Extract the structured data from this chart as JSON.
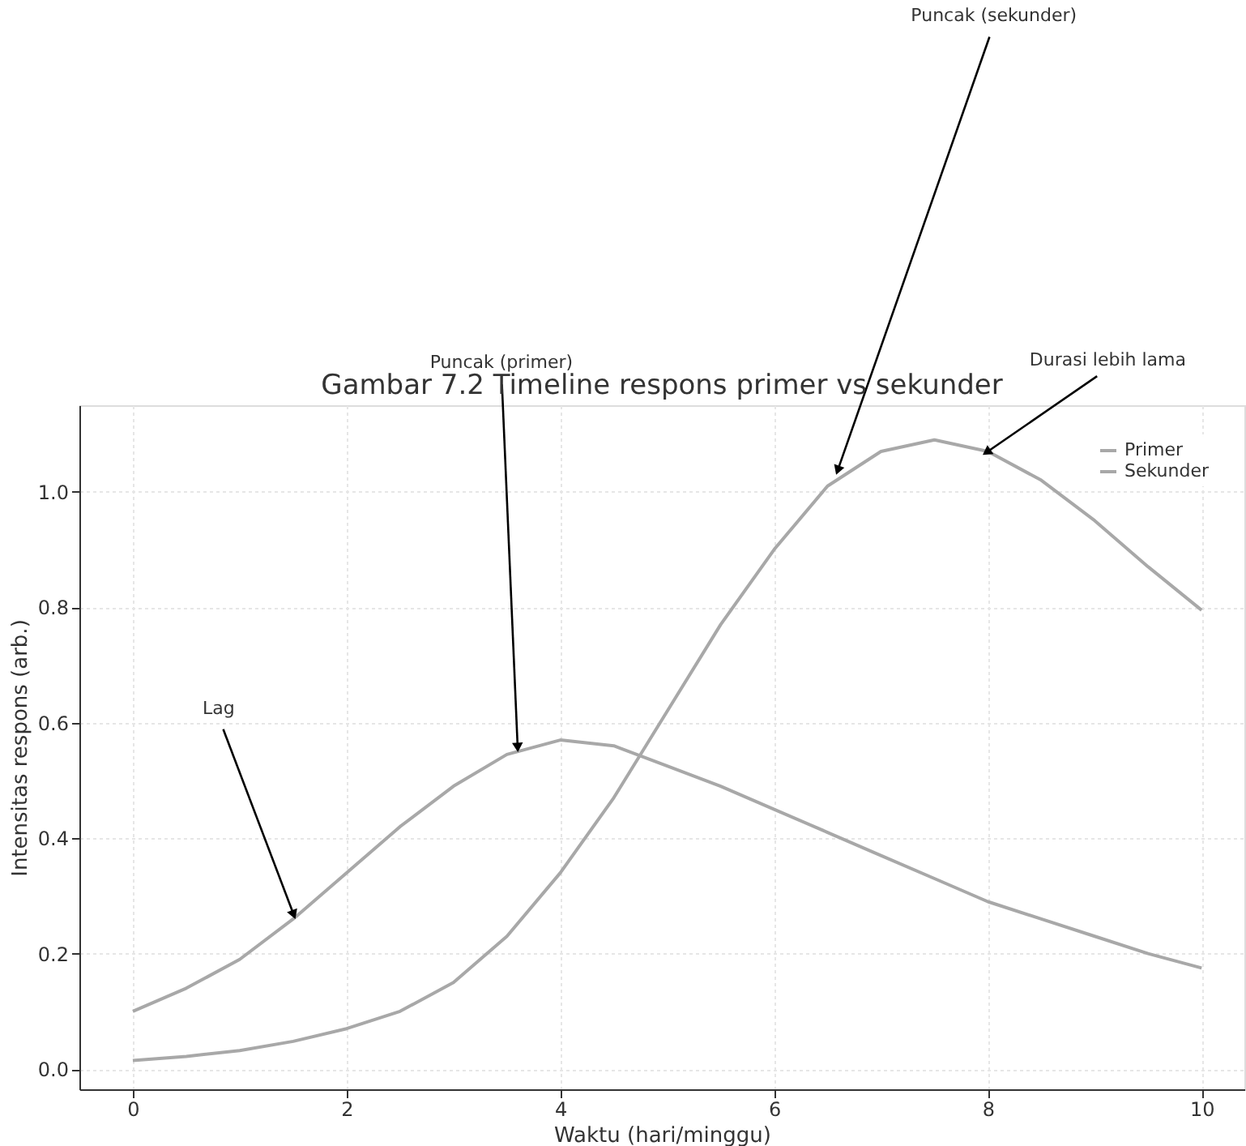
{
  "chart_data": {
    "type": "line",
    "title": "Gambar 7.2  Timeline respons primer vs sekunder",
    "xlabel": "Waktu (hari/minggu)",
    "ylabel": "Intensitas respons (arb.)",
    "x": [
      0,
      0.5,
      1,
      1.5,
      2,
      2.5,
      3,
      3.5,
      4,
      4.5,
      5,
      5.5,
      6,
      6.5,
      7,
      7.5,
      8,
      8.5,
      9,
      9.5,
      10
    ],
    "series": [
      {
        "name": "Primer",
        "color": "#a8a8a8",
        "values": [
          0.1,
          0.14,
          0.19,
          0.26,
          0.34,
          0.42,
          0.49,
          0.545,
          0.57,
          0.56,
          0.525,
          0.49,
          0.45,
          0.41,
          0.37,
          0.33,
          0.29,
          0.26,
          0.23,
          0.2,
          0.175
        ]
      },
      {
        "name": "Sekunder",
        "color": "#a8a8a8",
        "values": [
          0.015,
          0.022,
          0.032,
          0.048,
          0.07,
          0.1,
          0.15,
          0.23,
          0.34,
          0.47,
          0.62,
          0.77,
          0.9,
          1.01,
          1.07,
          1.09,
          1.07,
          1.02,
          0.95,
          0.87,
          0.795
        ]
      }
    ],
    "xlim": [
      -0.5,
      10.4
    ],
    "xticks": [
      0,
      2,
      4,
      6,
      8,
      10
    ],
    "ylim": [
      -0.035,
      1.15
    ],
    "yticks": [
      {
        "value": 0,
        "label": "0.0"
      },
      0.2,
      0.4,
      0.6,
      0.8,
      {
        "value": 1,
        "label": "1.0"
      }
    ],
    "annotations": [
      {
        "text": "Lag",
        "x": 1.5,
        "y": 0.27
      },
      {
        "text": "Puncak (primer)",
        "x": 3.6,
        "y": 0.56
      },
      {
        "text": "Puncak (sekunder)",
        "x": 6.6,
        "y": 1.04
      },
      {
        "text": "Durasi lebih lama",
        "x": 8.0,
        "y": 1.07
      }
    ],
    "grid": true,
    "legend": "top right",
    "line_style": "solid",
    "marker": "none"
  }
}
